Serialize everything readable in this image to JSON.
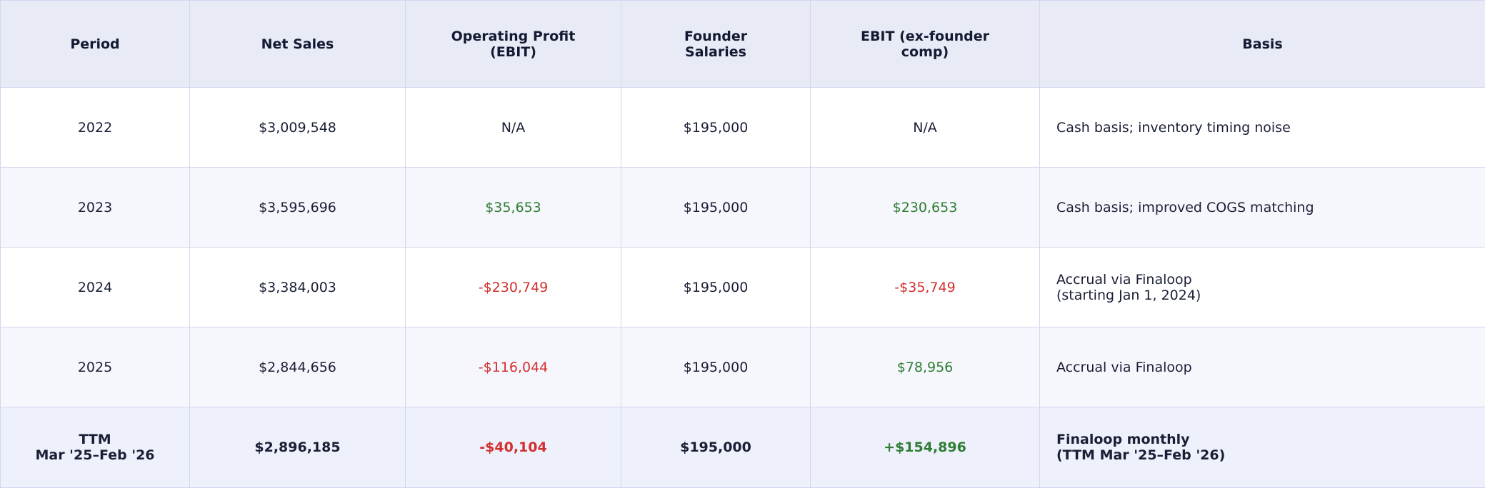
{
  "table": {
    "headers": [
      "Period",
      "Net Sales",
      "Operating Profit\n(EBIT)",
      "Founder\nSalaries",
      "EBIT (ex-founder\ncomp)",
      "Basis"
    ],
    "rows": [
      {
        "period": "2022",
        "net_sales": "$3,009,548",
        "ebit": "N/A",
        "founder_salaries": "$195,000",
        "ebit_ex_founder": "N/A",
        "basis": "Cash basis; inventory timing noise"
      },
      {
        "period": "2023",
        "net_sales": "$3,595,696",
        "ebit": "$35,653",
        "founder_salaries": "$195,000",
        "ebit_ex_founder": "$230,653",
        "basis": "Cash basis; improved COGS matching"
      },
      {
        "period": "2024",
        "net_sales": "$3,384,003",
        "ebit": "-$230,749",
        "founder_salaries": "$195,000",
        "ebit_ex_founder": "-$35,749",
        "basis": "Accrual via Finaloop\n(starting Jan 1, 2024)"
      },
      {
        "period": "2025",
        "net_sales": "$2,844,656",
        "ebit": "-$116,044",
        "founder_salaries": "$195,000",
        "ebit_ex_founder": "$78,956",
        "basis": "Accrual via Finaloop"
      }
    ],
    "total": {
      "period": "TTM\nMar '25–Feb '26",
      "net_sales": "$2,896,185",
      "ebit": "-$40,104",
      "founder_salaries": "$195,000",
      "ebit_ex_founder": "+$154,896",
      "basis": "Finaloop monthly\n(TTM Mar '25–Feb '26)"
    }
  },
  "colors": {
    "positive": "#2e7d32",
    "negative": "#d32f2f",
    "header_bg": "#e8ebf6",
    "border": "#d3d6ee"
  }
}
